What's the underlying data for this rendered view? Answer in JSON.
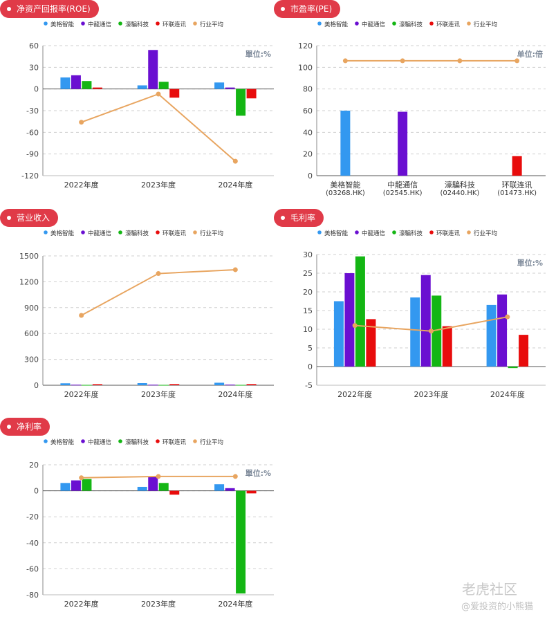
{
  "legend_names": [
    "美格智能",
    "中龍通信",
    "濠騙科技",
    "环联连讯",
    "行业平均"
  ],
  "colors": {
    "s1": "#3398f0",
    "s2": "#6a0fd1",
    "s3": "#14b614",
    "s4": "#e80c0c",
    "avg": "#e8a560",
    "pill": "#e03a48"
  },
  "watermark": {
    "brand": "老虎社区",
    "user": "@爱投资的小熊猫"
  },
  "chart_data": [
    {
      "id": "roe",
      "type": "bar",
      "title": "净资产回报率(ROE)",
      "unit": "單位:%",
      "categories": [
        "2022年度",
        "2023年度",
        "2024年度"
      ],
      "ylim": [
        -120,
        60
      ],
      "yticks": [
        60,
        30,
        0,
        -30,
        -60,
        -90,
        -120
      ],
      "series": [
        {
          "name": "美格智能",
          "values": [
            16,
            5,
            9
          ]
        },
        {
          "name": "中龍通信",
          "values": [
            19,
            54,
            2
          ]
        },
        {
          "name": "濠騙科技",
          "values": [
            11,
            10,
            -37
          ]
        },
        {
          "name": "环联连讯",
          "values": [
            2,
            -12,
            -13
          ]
        }
      ],
      "line": {
        "name": "行业平均",
        "values": [
          -46,
          -7,
          -100
        ]
      }
    },
    {
      "id": "pe",
      "type": "bar",
      "title": "市盈率(PE)",
      "unit": "单位:倍",
      "categories": [
        "美格智能",
        "中龍通信",
        "濠騙科技",
        "环联连讯"
      ],
      "sublabels": [
        "(03268.HK)",
        "(02545.HK)",
        "(02440.HK)",
        "(01473.HK)"
      ],
      "ylim": [
        0,
        120
      ],
      "yticks": [
        120,
        100,
        80,
        60,
        40,
        20,
        0
      ],
      "series": [
        {
          "name": "美格智能",
          "values": [
            60,
            null,
            null,
            null
          ]
        },
        {
          "name": "中龍通信",
          "values": [
            null,
            59,
            null,
            null
          ]
        },
        {
          "name": "濠騙科技",
          "values": [
            null,
            null,
            null,
            null
          ]
        },
        {
          "name": "环联连讯",
          "values": [
            null,
            null,
            null,
            18
          ]
        }
      ],
      "line": {
        "name": "行业平均",
        "values": [
          106,
          106,
          106,
          106
        ]
      }
    },
    {
      "id": "revenue",
      "type": "bar",
      "title": "营业收入",
      "unit": "",
      "categories": [
        "2022年度",
        "2023年度",
        "2024年度"
      ],
      "ylim": [
        0,
        1500
      ],
      "yticks": [
        1500,
        1200,
        900,
        600,
        300,
        0
      ],
      "series": [
        {
          "name": "美格智能",
          "values": [
            22,
            24,
            29
          ]
        },
        {
          "name": "中龍通信",
          "values": [
            6,
            6,
            7
          ]
        },
        {
          "name": "濠騙科技",
          "values": [
            4,
            4,
            4
          ]
        },
        {
          "name": "环联连讯",
          "values": [
            12,
            13,
            13
          ]
        }
      ],
      "line": {
        "name": "行业平均",
        "values": [
          810,
          1295,
          1340
        ]
      }
    },
    {
      "id": "gross",
      "type": "bar",
      "title": "毛利率",
      "unit": "單位:%",
      "categories": [
        "2022年度",
        "2023年度",
        "2024年度"
      ],
      "ylim": [
        -5,
        30
      ],
      "yticks": [
        30,
        25,
        20,
        15,
        10,
        5,
        0,
        -5
      ],
      "series": [
        {
          "name": "美格智能",
          "values": [
            17.5,
            18.5,
            16.5
          ]
        },
        {
          "name": "中龍通信",
          "values": [
            25,
            24.5,
            19.3
          ]
        },
        {
          "name": "濠騙科技",
          "values": [
            29.5,
            19,
            -0.4
          ]
        },
        {
          "name": "环联连讯",
          "values": [
            12.7,
            10.8,
            8.5
          ]
        }
      ],
      "line": {
        "name": "行业平均",
        "values": [
          11,
          9.5,
          13.3
        ]
      }
    },
    {
      "id": "net",
      "type": "bar",
      "title": "净利率",
      "unit": "單位:%",
      "categories": [
        "2022年度",
        "2023年度",
        "2024年度"
      ],
      "ylim": [
        -80,
        20
      ],
      "yticks": [
        20,
        0,
        -20,
        -40,
        -60,
        -80
      ],
      "series": [
        {
          "name": "美格智能",
          "values": [
            6,
            3,
            5
          ]
        },
        {
          "name": "中龍通信",
          "values": [
            8,
            11,
            2
          ]
        },
        {
          "name": "濠騙科技",
          "values": [
            9,
            6,
            -79
          ]
        },
        {
          "name": "环联连讯",
          "values": [
            null,
            -3,
            -2
          ]
        }
      ],
      "line": {
        "name": "行业平均",
        "values": [
          10,
          11,
          11
        ]
      }
    }
  ]
}
